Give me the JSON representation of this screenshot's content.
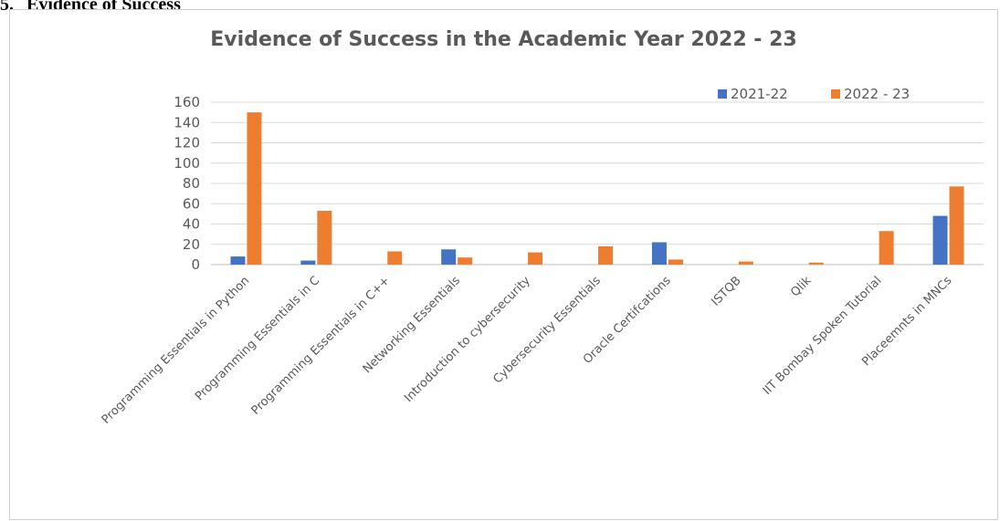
{
  "document": {
    "section_number": "5.",
    "section_heading": "Evidence of Success"
  },
  "chart_data": {
    "type": "bar",
    "title": "Evidence of Success in the Academic Year 2022 - 23",
    "xlabel": "",
    "ylabel": "",
    "ylim": [
      0,
      160
    ],
    "yticks": [
      0,
      20,
      40,
      60,
      80,
      100,
      120,
      140,
      160
    ],
    "grid": true,
    "legend_position": "top-right",
    "categories": [
      "Programming Essentials in Python",
      "Programming Essentials in C",
      "Programming Essentials in C++",
      "Networking Essentials",
      "Introduction to cybersecurity",
      "Cybersecurity Essentials",
      "Oracle Certifcations",
      "ISTQB",
      "Qlik",
      "IIT Bombay Spoken Tutorial",
      "Placeemnts in MNCs"
    ],
    "series": [
      {
        "name": "2021-22",
        "color": "#4472c4",
        "values": [
          8,
          4,
          0,
          15,
          0,
          0,
          22,
          0,
          0,
          0,
          48
        ]
      },
      {
        "name": "2022 - 23",
        "color": "#ed7d31",
        "values": [
          150,
          53,
          13,
          7,
          12,
          18,
          5,
          3,
          2,
          33,
          77
        ]
      }
    ]
  }
}
